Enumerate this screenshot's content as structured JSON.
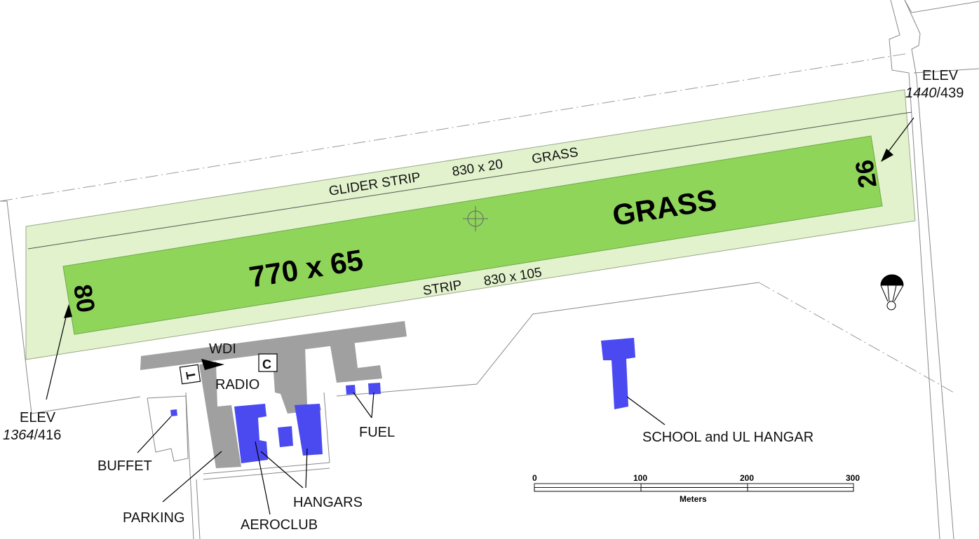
{
  "runway": {
    "dimensions": "770 x 65",
    "surface": "GRASS",
    "threshold_west": "80",
    "threshold_east": "26"
  },
  "glider_strip": {
    "name": "GLIDER STRIP",
    "size": "830 x 20",
    "surface": "GRASS"
  },
  "runway_strip": {
    "name": "STRIP",
    "size": "830 x 105"
  },
  "elevations": {
    "west": {
      "label": "ELEV",
      "feet": "1364",
      "meters": "/416"
    },
    "east": {
      "label": "ELEV",
      "feet": "1440",
      "meters": "/439"
    }
  },
  "facilities": {
    "wdi": "WDI",
    "radio": "RADIO",
    "sign_t": "T",
    "sign_c": "C",
    "fuel": "FUEL",
    "buffet": "BUFFET",
    "parking": "PARKING",
    "aeroclub": "AEROCLUB",
    "hangars": "HANGARS",
    "school": "SCHOOL and UL HANGAR"
  },
  "scale": {
    "ticks": [
      "0",
      "100",
      "200",
      "300"
    ],
    "unit": "Meters"
  },
  "colors": {
    "runway": "#8fd55a",
    "strip": "#e2f2cc",
    "apron": "#a0a0a0",
    "building": "#4a4af0"
  },
  "icons": [
    "parachute-icon",
    "aerodrome-reference-point-icon",
    "wind-direction-indicator-icon"
  ]
}
